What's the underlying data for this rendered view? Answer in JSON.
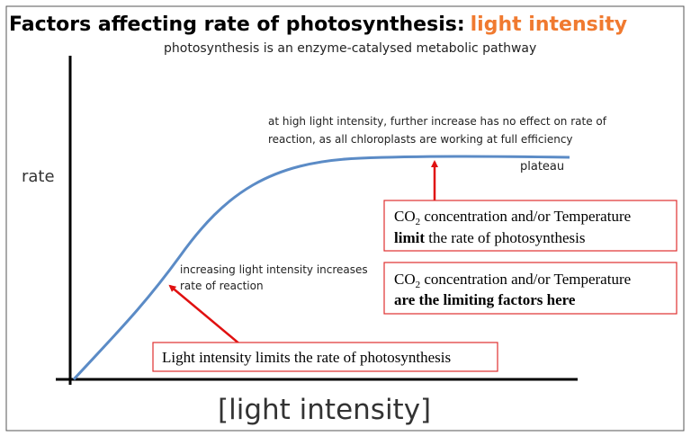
{
  "header": {
    "title": "Factors affecting rate of photosynthesis:",
    "title_highlight": "light intensity",
    "subtitle": "photosynthesis is an enzyme-catalysed metabolic pathway"
  },
  "axes": {
    "y_label": "rate",
    "x_label": "[light intensity]"
  },
  "annotations": {
    "high": [
      "at high light intensity, further increase has no effect on rate of",
      "reaction, as all chloroplasts are working at full efficiency"
    ],
    "plateau": "plateau",
    "low": [
      "increasing light intensity increases",
      "rate of reaction"
    ]
  },
  "boxes": {
    "limit": {
      "co": "CO",
      "sub": "2",
      "line1": " concentration and/or Temperature",
      "bold": "limit",
      "line2": " the rate of photosynthesis"
    },
    "factors": {
      "co": "CO",
      "sub": "2",
      "line1": " concentration and/or Temperature",
      "bold": "are the limiting factors here"
    },
    "light": "Light intensity limits the rate of photosynthesis"
  }
}
